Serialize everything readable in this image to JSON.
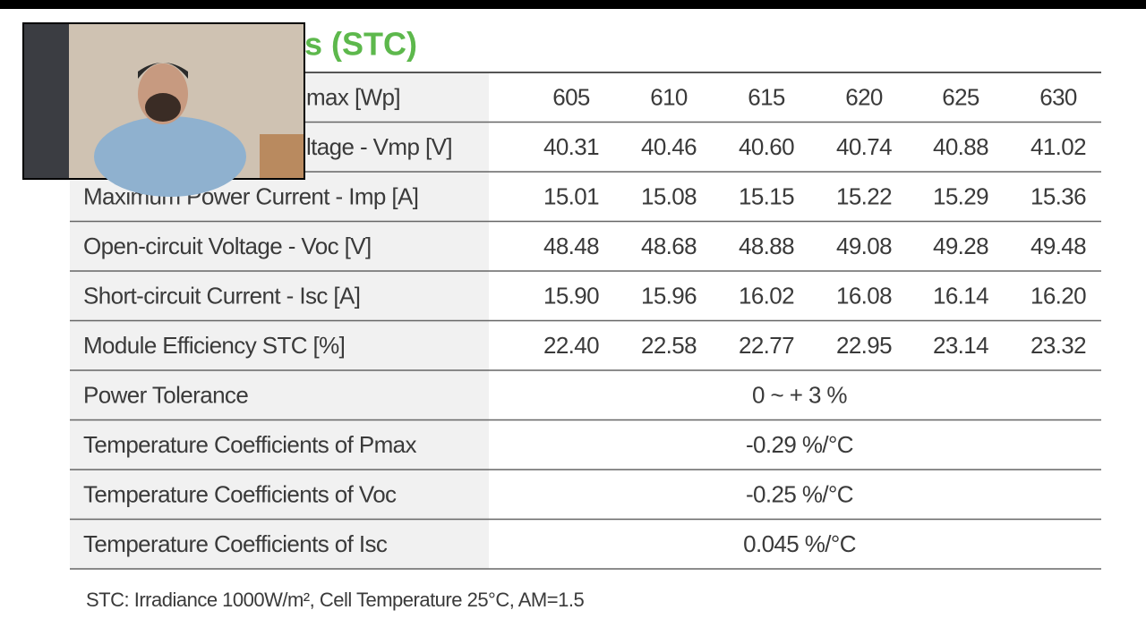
{
  "title": "s (STC)",
  "table": {
    "rows": [
      {
        "label": "max [Wp]",
        "values": [
          "605",
          "610",
          "615",
          "620",
          "625",
          "630"
        ]
      },
      {
        "label": "ltage - Vmp [V]",
        "values": [
          "40.31",
          "40.46",
          "40.60",
          "40.74",
          "40.88",
          "41.02"
        ]
      },
      {
        "label": "Maximum Power Current - Imp [A]",
        "values": [
          "15.01",
          "15.08",
          "15.15",
          "15.22",
          "15.29",
          "15.36"
        ]
      },
      {
        "label": "Open-circuit Voltage - Voc [V]",
        "values": [
          "48.48",
          "48.68",
          "48.88",
          "49.08",
          "49.28",
          "49.48"
        ]
      },
      {
        "label": "Short-circuit Current - Isc [A]",
        "values": [
          "15.90",
          "15.96",
          "16.02",
          "16.08",
          "16.14",
          "16.20"
        ]
      },
      {
        "label": "Module Efficiency STC [%]",
        "values": [
          "22.40",
          "22.58",
          "22.77",
          "22.95",
          "23.14",
          "23.32"
        ]
      },
      {
        "label": "Power Tolerance",
        "value": "0 ~ + 3 %"
      },
      {
        "label": "Temperature Coefficients of Pmax",
        "value": "-0.29 %/°C"
      },
      {
        "label": "Temperature Coefficients of Voc",
        "value": "-0.25 %/°C"
      },
      {
        "label": "Temperature Coefficients of Isc",
        "value": "0.045 %/°C"
      }
    ]
  },
  "footnote": "STC: Irradiance 1000W/m², Cell Temperature 25°C, AM=1.5"
}
